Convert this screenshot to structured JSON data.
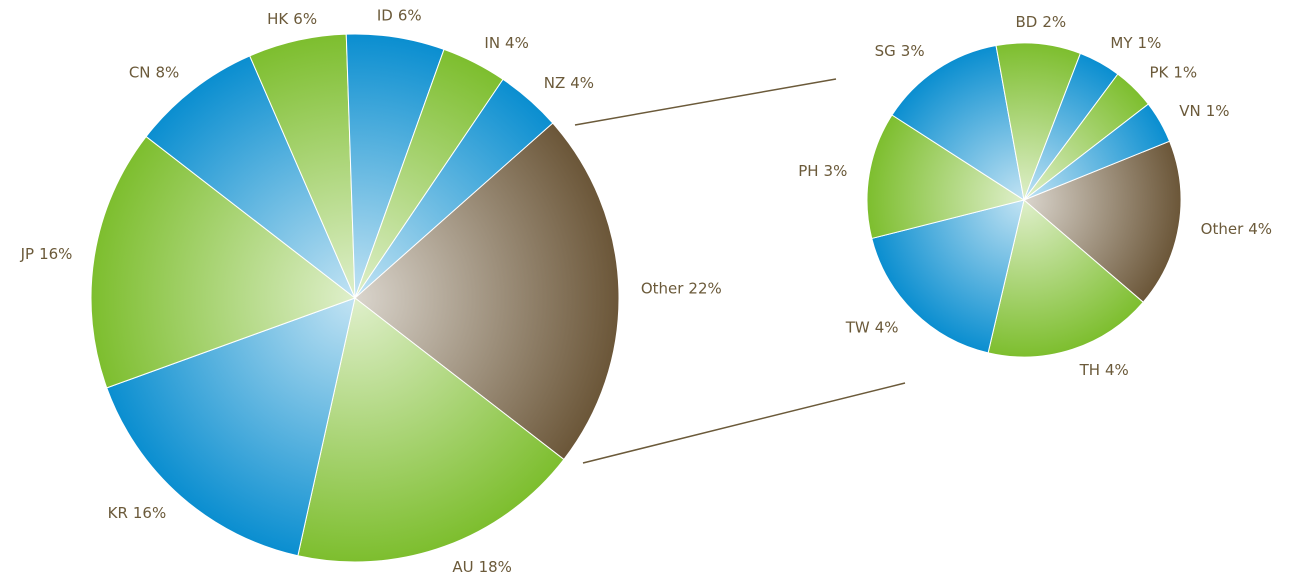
{
  "chart_data": [
    {
      "type": "pie",
      "categories": [
        "Other",
        "AU",
        "KR",
        "JP",
        "CN",
        "HK",
        "ID",
        "IN",
        "NZ"
      ],
      "values": [
        22,
        18,
        16,
        16,
        8,
        6,
        6,
        4,
        4
      ],
      "value_labels": [
        "22%",
        "18%",
        "16%",
        "16%",
        "8%",
        "6%",
        "6%",
        "4%",
        "4%"
      ],
      "colors": [
        "#6b5638",
        "#7dbe2e",
        "#0a8ed0",
        "#7dbe2e",
        "#0a8ed0",
        "#7dbe2e",
        "#0a8ed0",
        "#7dbe2e",
        "#0a8ed0"
      ]
    },
    {
      "type": "pie",
      "categories": [
        "Other",
        "TH",
        "TW",
        "PH",
        "SG",
        "BD",
        "MY",
        "PK",
        "VN"
      ],
      "values": [
        4,
        4,
        4,
        3,
        3,
        2,
        1,
        1,
        1
      ],
      "value_labels": [
        "4%",
        "4%",
        "4%",
        "3%",
        "3%",
        "2%",
        "1%",
        "1%",
        "1%"
      ],
      "colors": [
        "#6b5638",
        "#7dbe2e",
        "#0a8ed0",
        "#7dbe2e",
        "#0a8ed0",
        "#7dbe2e",
        "#0a8ed0",
        "#7dbe2e",
        "#0a8ed0"
      ]
    }
  ]
}
